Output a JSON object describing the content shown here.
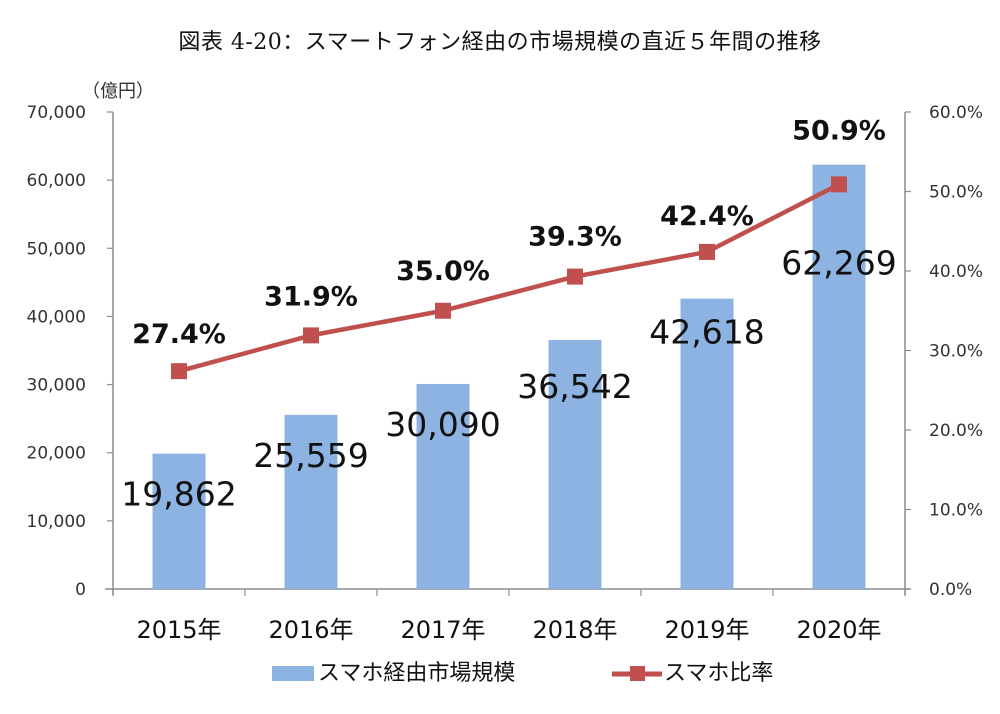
{
  "title": "図表 4-20：スマートフォン経由の市場規模の直近５年間の推移",
  "chart_data": {
    "type": "bar",
    "title": "図表 4-20：スマートフォン経由の市場規模の直近５年間の推移",
    "categories": [
      "2015年",
      "2016年",
      "2017年",
      "2018年",
      "2019年",
      "2020年"
    ],
    "series": [
      {
        "name": "スマホ経由市場規模",
        "type": "bar",
        "axis": "left",
        "color": "#8DB3E2",
        "values": [
          19862,
          25559,
          30090,
          36542,
          42618,
          62269
        ],
        "labels": [
          "19,862",
          "25,559",
          "30,090",
          "36,542",
          "42,618",
          "62,269"
        ]
      },
      {
        "name": "スマホ比率",
        "type": "line",
        "axis": "right",
        "color": "#C0504D",
        "marker": "square",
        "values": [
          27.4,
          31.9,
          35.0,
          39.3,
          42.4,
          50.9
        ],
        "labels": [
          "27.4%",
          "31.9%",
          "35.0%",
          "39.3%",
          "42.4%",
          "50.9%"
        ]
      }
    ],
    "ylabel": "（億円）",
    "ylim": [
      0,
      70000
    ],
    "yticks": [
      "0",
      "10,000",
      "20,000",
      "30,000",
      "40,000",
      "50,000",
      "60,000",
      "70,000"
    ],
    "y2lim": [
      0,
      60
    ],
    "y2ticks": [
      "0.0%",
      "10.0%",
      "20.0%",
      "30.0%",
      "40.0%",
      "50.0%",
      "60.0%"
    ],
    "xlabel": "",
    "grid": false,
    "legend": "bottom"
  }
}
